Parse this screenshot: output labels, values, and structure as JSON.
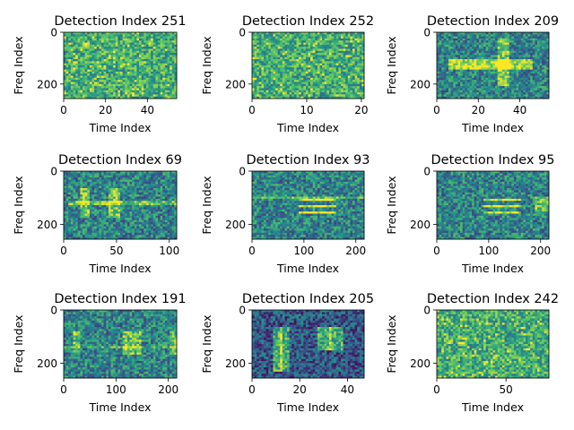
{
  "chart_data": [
    {
      "type": "heatmap",
      "title": "Detection Index 251",
      "xlabel": "Time Index",
      "ylabel": "Freq Index",
      "xlim": [
        0,
        54
      ],
      "ylim": [
        256,
        0
      ],
      "xticks": [
        0,
        20,
        40
      ],
      "yticks": [
        0,
        200
      ],
      "pattern": "noise",
      "brightness": "high"
    },
    {
      "type": "heatmap",
      "title": "Detection Index 252",
      "xlabel": "Time Index",
      "ylabel": "Freq Index",
      "xlim": [
        0,
        20.5
      ],
      "ylim": [
        256,
        0
      ],
      "xticks": [
        0,
        10,
        20
      ],
      "yticks": [
        0,
        200
      ],
      "pattern": "noise",
      "brightness": "high"
    },
    {
      "type": "heatmap",
      "title": "Detection Index 209",
      "xlabel": "Time Index",
      "ylabel": "Freq Index",
      "xlim": [
        0,
        54
      ],
      "ylim": [
        256,
        0
      ],
      "xticks": [
        0,
        20,
        40
      ],
      "yticks": [
        0,
        200
      ],
      "pattern": "cross",
      "brightness": "normal"
    },
    {
      "type": "heatmap",
      "title": "Detection Index 69",
      "xlabel": "Time Index",
      "ylabel": "Freq Index",
      "xlim": [
        0,
        107
      ],
      "ylim": [
        256,
        0
      ],
      "xticks": [
        0,
        50,
        100
      ],
      "yticks": [
        0,
        200
      ],
      "pattern": "bursts",
      "brightness": "normal"
    },
    {
      "type": "heatmap",
      "title": "Detection Index 93",
      "xlabel": "Time Index",
      "ylabel": "Freq Index",
      "xlim": [
        0,
        216
      ],
      "ylim": [
        256,
        0
      ],
      "xticks": [
        0,
        100,
        200
      ],
      "yticks": [
        0,
        200
      ],
      "pattern": "stripes",
      "brightness": "normal"
    },
    {
      "type": "heatmap",
      "title": "Detection Index 95",
      "xlabel": "Time Index",
      "ylabel": "Freq Index",
      "xlim": [
        0,
        216
      ],
      "ylim": [
        256,
        0
      ],
      "xticks": [
        0,
        100,
        200
      ],
      "yticks": [
        0,
        200
      ],
      "pattern": "stripes2",
      "brightness": "normal"
    },
    {
      "type": "heatmap",
      "title": "Detection Index 191",
      "xlabel": "Time Index",
      "ylabel": "Freq Index",
      "xlim": [
        0,
        216
      ],
      "ylim": [
        256,
        0
      ],
      "xticks": [
        0,
        100,
        200
      ],
      "yticks": [
        0,
        200
      ],
      "pattern": "blocks",
      "brightness": "normal"
    },
    {
      "type": "heatmap",
      "title": "Detection Index 205",
      "xlabel": "Time Index",
      "ylabel": "Freq Index",
      "xlim": [
        0,
        47
      ],
      "ylim": [
        256,
        0
      ],
      "xticks": [
        0,
        20,
        40
      ],
      "yticks": [
        0,
        200
      ],
      "pattern": "dark-blocks",
      "brightness": "low"
    },
    {
      "type": "heatmap",
      "title": "Detection Index 242",
      "xlabel": "Time Index",
      "ylabel": "Freq Index",
      "xlim": [
        0,
        81
      ],
      "ylim": [
        256,
        0
      ],
      "xticks": [
        0,
        50
      ],
      "yticks": [
        0,
        200
      ],
      "pattern": "noise",
      "brightness": "high"
    }
  ],
  "colormap": [
    "#440154",
    "#3b528b",
    "#21918c",
    "#5ec962",
    "#fde725"
  ]
}
